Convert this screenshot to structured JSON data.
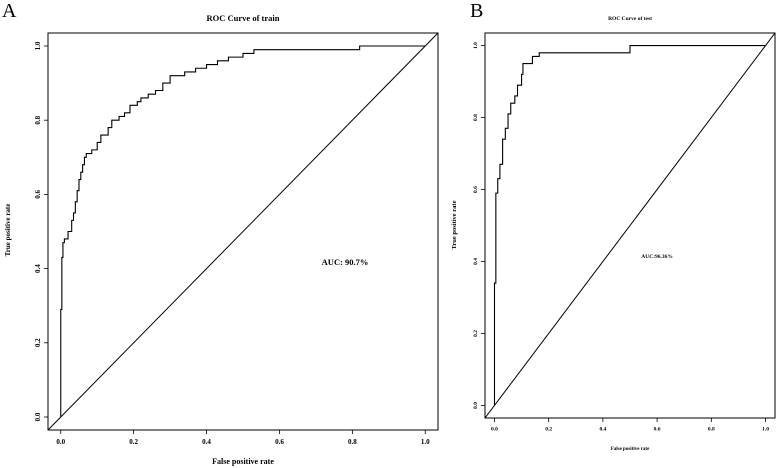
{
  "chart_data": [
    {
      "type": "line",
      "panel_label": "A",
      "title": "ROC Curve of train",
      "xlabel": "False positive rate",
      "ylabel": "True positive rate",
      "xlim": [
        0,
        1
      ],
      "ylim": [
        0,
        1
      ],
      "xticks": [
        "0.0",
        "0.2",
        "0.4",
        "0.6",
        "0.8",
        "1.0"
      ],
      "yticks": [
        "0.0",
        "0.2",
        "0.4",
        "0.6",
        "0.8",
        "1.0"
      ],
      "annotation": "AUC: 90.7%",
      "grid": false,
      "series": [
        {
          "x": [
            0.0,
            0.0,
            0.003,
            0.003,
            0.006,
            0.006,
            0.01,
            0.01,
            0.02,
            0.02,
            0.03,
            0.03,
            0.035,
            0.035,
            0.04,
            0.04,
            0.045,
            0.045,
            0.05,
            0.05,
            0.055,
            0.055,
            0.06,
            0.06,
            0.065,
            0.065,
            0.07,
            0.07,
            0.085,
            0.085,
            0.1,
            0.1,
            0.11,
            0.11,
            0.13,
            0.13,
            0.14,
            0.14,
            0.16,
            0.16,
            0.175,
            0.175,
            0.19,
            0.19,
            0.21,
            0.21,
            0.22,
            0.22,
            0.24,
            0.24,
            0.26,
            0.26,
            0.28,
            0.28,
            0.3,
            0.3,
            0.34,
            0.34,
            0.37,
            0.37,
            0.4,
            0.4,
            0.43,
            0.43,
            0.46,
            0.46,
            0.5,
            0.5,
            0.53,
            0.53,
            0.82,
            0.82,
            1.0
          ],
          "y": [
            0.0,
            0.29,
            0.29,
            0.43,
            0.43,
            0.47,
            0.47,
            0.48,
            0.48,
            0.5,
            0.5,
            0.53,
            0.53,
            0.55,
            0.55,
            0.58,
            0.58,
            0.61,
            0.61,
            0.64,
            0.64,
            0.66,
            0.66,
            0.68,
            0.68,
            0.7,
            0.7,
            0.71,
            0.71,
            0.72,
            0.72,
            0.74,
            0.74,
            0.76,
            0.76,
            0.78,
            0.78,
            0.8,
            0.8,
            0.81,
            0.81,
            0.82,
            0.82,
            0.84,
            0.84,
            0.85,
            0.85,
            0.86,
            0.86,
            0.87,
            0.87,
            0.88,
            0.88,
            0.9,
            0.9,
            0.92,
            0.92,
            0.93,
            0.93,
            0.94,
            0.94,
            0.95,
            0.95,
            0.96,
            0.96,
            0.97,
            0.97,
            0.98,
            0.98,
            0.99,
            0.99,
            1.0,
            1.0
          ]
        }
      ]
    },
    {
      "type": "line",
      "panel_label": "B",
      "title": "ROC Curve of test",
      "xlabel": "False positive rate",
      "ylabel": "True positive rate",
      "xlim": [
        0,
        1
      ],
      "ylim": [
        0,
        1
      ],
      "xticks": [
        "0.0",
        "0.2",
        "0.4",
        "0.6",
        "0.8",
        "1.0"
      ],
      "yticks": [
        "0.0",
        "0.2",
        "0.4",
        "0.6",
        "0.8",
        "1.0"
      ],
      "annotation": "AUC:96.36%",
      "grid": false,
      "series": [
        {
          "x": [
            0.0,
            0.0,
            0.005,
            0.005,
            0.012,
            0.012,
            0.02,
            0.02,
            0.03,
            0.03,
            0.04,
            0.04,
            0.05,
            0.05,
            0.06,
            0.06,
            0.075,
            0.075,
            0.085,
            0.085,
            0.1,
            0.1,
            0.105,
            0.105,
            0.14,
            0.14,
            0.165,
            0.165,
            0.5,
            0.5,
            1.0
          ],
          "y": [
            0.0,
            0.34,
            0.34,
            0.59,
            0.59,
            0.63,
            0.63,
            0.67,
            0.67,
            0.74,
            0.74,
            0.77,
            0.77,
            0.81,
            0.81,
            0.84,
            0.84,
            0.86,
            0.86,
            0.89,
            0.89,
            0.92,
            0.92,
            0.95,
            0.95,
            0.97,
            0.97,
            0.98,
            0.98,
            1.0,
            1.0
          ]
        }
      ]
    }
  ]
}
